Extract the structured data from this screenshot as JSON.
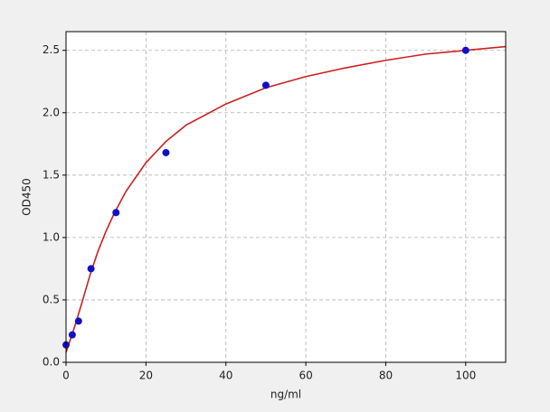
{
  "chart_data": {
    "type": "scatter",
    "x_label": "ng/ml",
    "y_label": "OD450",
    "x": [
      0,
      1.56,
      3.125,
      6.25,
      12.5,
      25,
      50,
      100
    ],
    "values": [
      0.14,
      0.22,
      0.33,
      0.75,
      1.2,
      1.68,
      2.22,
      2.5
    ],
    "color": "#1010c8",
    "fit": {
      "x": [
        0,
        2,
        4,
        6,
        8,
        10,
        12,
        15,
        20,
        25,
        30,
        40,
        50,
        60,
        70,
        80,
        90,
        100,
        110
      ],
      "values": [
        0.08,
        0.27,
        0.48,
        0.7,
        0.89,
        1.05,
        1.19,
        1.37,
        1.6,
        1.77,
        1.9,
        2.07,
        2.2,
        2.29,
        2.36,
        2.42,
        2.47,
        2.5,
        2.53
      ],
      "color": "#cc2020"
    },
    "xlim": [
      0,
      110
    ],
    "ylim": [
      0,
      2.65
    ],
    "xticks": [
      0,
      20,
      40,
      60,
      80,
      100
    ],
    "yticks": [
      {
        "value": 0,
        "label": "0.0"
      },
      0.5,
      {
        "value": 1,
        "label": "1.0"
      },
      1.5,
      {
        "value": 2,
        "label": "2.0"
      },
      2.5
    ],
    "grid": true
  }
}
